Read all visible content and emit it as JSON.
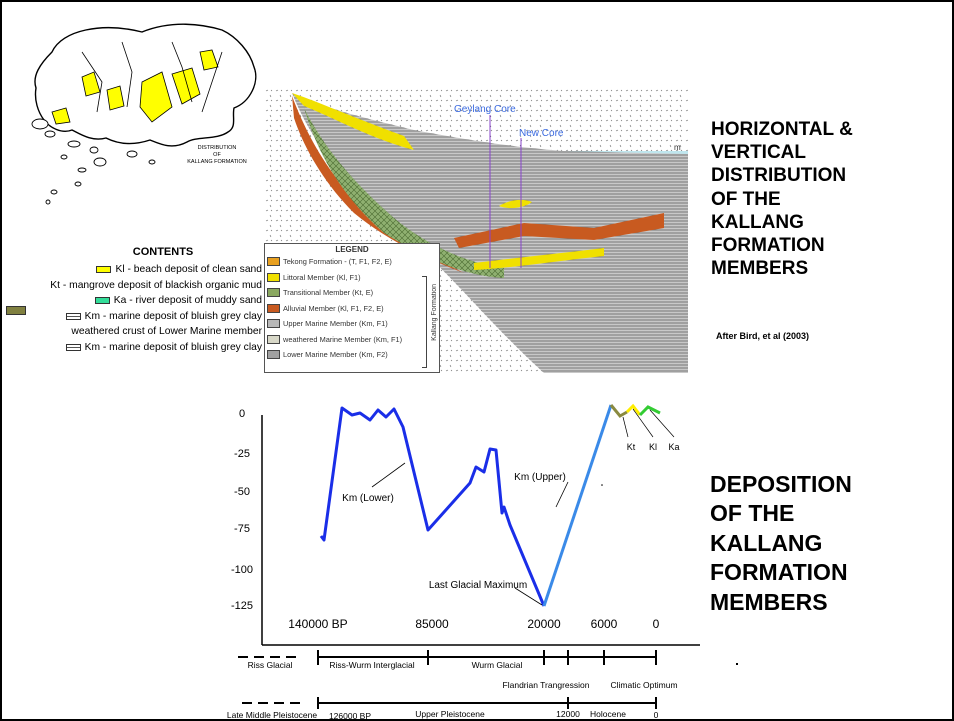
{
  "title_top": {
    "lines": [
      "HORIZONTAL &",
      "VERTICAL",
      "DISTRIBUTION",
      "OF THE",
      "KALLANG",
      "FORMATION",
      "MEMBERS"
    ],
    "attribution": "After Bird, et al (2003)"
  },
  "title_bottom": {
    "lines": [
      "DEPOSITION",
      "OF THE",
      "KALLANG",
      "FORMATION",
      "MEMBERS"
    ]
  },
  "map": {
    "label": [
      "DISTRIBUTION",
      "OF",
      "KALLANG FORMATION"
    ],
    "colors": {
      "deposit": "#ffff00"
    }
  },
  "contents": {
    "heading": "CONTENTS",
    "items": [
      {
        "text": "Kl - beach deposit of clean sand",
        "color": "#ffff00"
      },
      {
        "text": "Kt - mangrove deposit of blackish organic mud",
        "color": "#808040"
      },
      {
        "text": "Ka - river deposit of muddy sand",
        "color": "#33dd99"
      },
      {
        "text": "Km - marine deposit of bluish grey clay",
        "color": "hatch"
      },
      {
        "text": "weathered crust of Lower Marine member",
        "color": "none"
      },
      {
        "text": "Km - marine deposit of bluish grey clay",
        "color": "hatch2"
      }
    ]
  },
  "cross_section": {
    "core_labels": [
      "Geylang Core",
      "New Core"
    ],
    "sea_label": "m",
    "legend_title": "LEGEND",
    "legend_side_label": "Kallang Formation",
    "legend_items": [
      {
        "text": "Tekong Formation - (T, F1, F2, E)",
        "color": "#e8a020"
      },
      {
        "text": "Littoral Member (Kl, F1)",
        "color": "#f0e000"
      },
      {
        "text": "Transitional Member (Kt, E)",
        "color": "#8aa860"
      },
      {
        "text": "Alluvial Member (Kl, F1, F2, E)",
        "color": "#c85a20"
      },
      {
        "text": "Upper Marine Member (Km, F1)",
        "color": "#b8b8b8"
      },
      {
        "text": "weathered Marine Member (Km, F1)",
        "color": "#d8d8c8"
      },
      {
        "text": "Lower Marine Member (Km, F2)",
        "color": "#a0a0a0"
      }
    ]
  },
  "chart_data": {
    "type": "line",
    "ylim": [
      -135,
      5
    ],
    "y_ticks": [
      "0",
      "-25",
      "-50",
      "-75",
      "-100",
      "-125"
    ],
    "x_ticks": [
      "140000  BP",
      "85000",
      "20000",
      "6000",
      "0"
    ],
    "annotations": [
      "Km (Lower)",
      "Km (Upper)",
      "Last Glacial Maximum",
      "Kt",
      "Kl",
      "Ka"
    ],
    "series": [
      {
        "name": "Km (Lower)",
        "color": "#1a2ee8"
      },
      {
        "name": "Km (Upper)",
        "color": "#3a8ae8"
      },
      {
        "name": "Kt",
        "color": "#8a8a40"
      },
      {
        "name": "Kl",
        "color": "#ffee00"
      },
      {
        "name": "Ka",
        "color": "#33cc33"
      }
    ],
    "timescale_row1": [
      "Riss Glacial",
      "Riss-Wurm Interglacial",
      "Wurm Glacial",
      "Flandrian Trangression",
      "Climatic Optimum"
    ],
    "timescale_row2": [
      "Late Middle Pleistocene",
      "126000 BP",
      "Upper Pleistocene",
      "12000",
      "Holocene",
      "0"
    ]
  }
}
